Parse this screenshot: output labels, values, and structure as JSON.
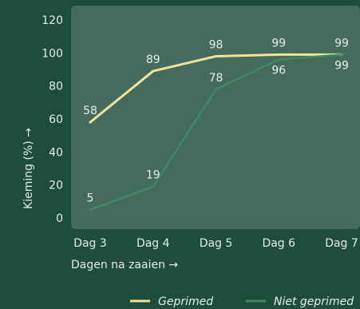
{
  "colors": {
    "background": "#1f4d3d",
    "plot_background": "#456b5f",
    "text": "#e6ece8",
    "primed": "#f3e39a",
    "unprimed": "#3d8a63"
  },
  "chart_data": {
    "type": "line",
    "categories": [
      "Dag 3",
      "Dag 4",
      "Dag 5",
      "Dag 6",
      "Dag 7"
    ],
    "series": [
      {
        "name": "Geprimed",
        "values": [
          58,
          89,
          98,
          99,
          99
        ],
        "color": "#f3e39a"
      },
      {
        "name": "Niet geprimed",
        "values": [
          5,
          19,
          78,
          96,
          99
        ],
        "color": "#3d8a63"
      }
    ],
    "xlabel": "Dagen na zaaien →",
    "ylabel": "Kieming (%) →",
    "ylim": [
      0,
      120
    ],
    "yticks": [
      0,
      20,
      40,
      60,
      80,
      100,
      120
    ],
    "grid": false,
    "legend": "bottom-right"
  }
}
